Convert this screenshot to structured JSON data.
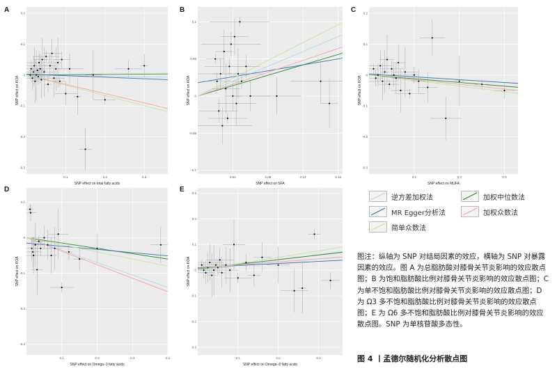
{
  "legend": {
    "items": [
      {
        "label": "逆方差加权法",
        "color": "#b7d8ec"
      },
      {
        "label": "加权中位数法",
        "color": "#2e8b2e"
      },
      {
        "label": "MR Egger分析法",
        "color": "#3a6fb0"
      },
      {
        "label": "加权众数法",
        "color": "#f2a7a7"
      },
      {
        "label": "简单众数法",
        "color": "#c9e3a6"
      }
    ]
  },
  "caption": "图注：纵轴为 SNP 对结局因素的效应，横轴为 SNP 对暴露因素的效应。图 A 为总脂肪酸对膝骨关节炎影响的效应散点图；B 为饱和脂肪酸比例对膝骨关节炎影响的效应散点图；C 为单不饱和脂肪酸比例对膝骨关节炎影响的效应散点图；D 为 Ω3 多不饱和脂肪酸比例对膝骨关节炎影响的效应散点图；E 为 Ω6 多不饱和脂肪酸比例对膝骨关节炎影响的效应散点图。SNP 为单核苷酸多态性。",
  "figure_title": "图 4 丨孟德尔随机化分析散点图",
  "chart_data": [
    {
      "panel": "A",
      "type": "scatter",
      "xlabel": "SNP effect on  total fatty acids",
      "ylabel": "SNP effect on KOA",
      "xlim": [
        0.0,
        0.36
      ],
      "ylim": [
        -0.32,
        0.22
      ],
      "xticks": [
        0.1,
        0.2,
        0.3
      ],
      "yticks": [
        -0.3,
        -0.2,
        -0.1,
        0.0,
        0.1,
        0.2
      ],
      "points": [
        [
          0.01,
          0.0
        ],
        [
          0.012,
          0.02
        ],
        [
          0.015,
          -0.01
        ],
        [
          0.018,
          0.01
        ],
        [
          0.02,
          0.03
        ],
        [
          0.022,
          -0.02
        ],
        [
          0.025,
          0.0
        ],
        [
          0.028,
          0.015
        ],
        [
          0.03,
          -0.005
        ],
        [
          0.032,
          0.04
        ],
        [
          0.035,
          0.02
        ],
        [
          0.038,
          -0.015
        ],
        [
          0.04,
          0.05
        ],
        [
          0.045,
          0.01
        ],
        [
          0.05,
          0.06
        ],
        [
          0.055,
          -0.03
        ],
        [
          0.06,
          0.03
        ],
        [
          0.065,
          0.07
        ],
        [
          0.07,
          -0.01
        ],
        [
          0.075,
          0.02
        ],
        [
          0.08,
          0.04
        ],
        [
          0.085,
          -0.02
        ],
        [
          0.09,
          0.05
        ],
        [
          0.1,
          -0.06
        ],
        [
          0.11,
          0.02
        ],
        [
          0.13,
          -0.07
        ],
        [
          0.15,
          -0.24
        ],
        [
          0.17,
          0.0
        ],
        [
          0.2,
          -0.08
        ],
        [
          0.26,
          0.02
        ],
        [
          0.3,
          0.03
        ]
      ],
      "lines": [
        {
          "method": "逆方差加权法",
          "slope": -0.02,
          "intercept": 0.0
        },
        {
          "method": "加权中位数法",
          "slope": 0.01,
          "intercept": 0.0
        },
        {
          "method": "MR Egger分析法",
          "slope": -0.05,
          "intercept": 0.003
        },
        {
          "method": "加权众数法",
          "slope": -0.3,
          "intercept": 0.0
        },
        {
          "method": "简单众数法",
          "slope": -0.33,
          "intercept": 0.0
        }
      ]
    },
    {
      "panel": "B",
      "type": "scatter",
      "xlabel": "SNP effect on SFA",
      "ylabel": "SNP effect on KOA",
      "xlim": [
        0.0,
        0.165
      ],
      "ylim": [
        -0.105,
        0.12
      ],
      "xticks": [
        0.04,
        0.08,
        0.12,
        0.16
      ],
      "yticks": [
        -0.1,
        -0.05,
        0.0,
        0.05,
        0.1
      ],
      "points": [
        [
          0.02,
          0.05
        ],
        [
          0.022,
          0.02
        ],
        [
          0.024,
          -0.02
        ],
        [
          0.026,
          0.03
        ],
        [
          0.028,
          -0.04
        ],
        [
          0.03,
          0.06
        ],
        [
          0.032,
          0.01
        ],
        [
          0.034,
          -0.03
        ],
        [
          0.036,
          0.04
        ],
        [
          0.038,
          0.07
        ],
        [
          0.04,
          0.0
        ],
        [
          0.042,
          0.08
        ],
        [
          0.044,
          -0.01
        ],
        [
          0.046,
          0.03
        ],
        [
          0.048,
          0.1
        ],
        [
          0.05,
          0.02
        ],
        [
          0.055,
          0.04
        ],
        [
          0.06,
          0.0
        ],
        [
          0.09,
          0.0
        ],
        [
          0.14,
          0.02
        ],
        [
          0.15,
          -0.01
        ]
      ],
      "lines": [
        {
          "method": "逆方差加权法",
          "slope": 0.5,
          "intercept": 0.0
        },
        {
          "method": "加权中位数法",
          "slope": 0.35,
          "intercept": 0.0
        },
        {
          "method": "MR Egger分析法",
          "slope": 0.2,
          "intercept": 0.018
        },
        {
          "method": "加权众数法",
          "slope": 0.4,
          "intercept": 0.0
        },
        {
          "method": "简单众数法",
          "slope": 0.6,
          "intercept": 0.0
        }
      ]
    },
    {
      "panel": "C",
      "type": "scatter",
      "xlabel": "SNP effect on MUFA",
      "ylabel": "SNP effect on KOA",
      "xlim": [
        0.0,
        0.33
      ],
      "ylim": [
        -0.32,
        0.22
      ],
      "xticks": [
        0.1,
        0.2,
        0.3
      ],
      "yticks": [
        -0.3,
        -0.2,
        -0.1,
        0.0,
        0.1,
        0.2
      ],
      "points": [
        [
          0.01,
          0.02
        ],
        [
          0.015,
          -0.01
        ],
        [
          0.02,
          0.0
        ],
        [
          0.025,
          0.03
        ],
        [
          0.03,
          -0.02
        ],
        [
          0.035,
          0.01
        ],
        [
          0.04,
          0.05
        ],
        [
          0.045,
          -0.03
        ],
        [
          0.05,
          0.02
        ],
        [
          0.055,
          0.0
        ],
        [
          0.06,
          -0.01
        ],
        [
          0.065,
          0.04
        ],
        [
          0.07,
          -0.05
        ],
        [
          0.08,
          0.01
        ],
        [
          0.09,
          -0.06
        ],
        [
          0.1,
          0.0
        ],
        [
          0.11,
          -0.02
        ],
        [
          0.13,
          -0.04
        ],
        [
          0.14,
          0.12
        ],
        [
          0.17,
          -0.14
        ],
        [
          0.2,
          -0.02
        ],
        [
          0.25,
          -0.03
        ],
        [
          0.3,
          -0.05
        ]
      ],
      "lines": [
        {
          "method": "逆方差加权法",
          "slope": -0.1,
          "intercept": 0.005
        },
        {
          "method": "加权中位数法",
          "slope": -0.12,
          "intercept": 0.0
        },
        {
          "method": "MR Egger分析法",
          "slope": -0.09,
          "intercept": 0.003
        },
        {
          "method": "加权众数法",
          "slope": -0.15,
          "intercept": 0.0
        },
        {
          "method": "简单众数法",
          "slope": -0.18,
          "intercept": 0.0
        }
      ]
    },
    {
      "panel": "D",
      "type": "scatter",
      "xlabel": "SNP effect on Omega−3 fatty acids",
      "ylabel": "SNP effect on KOA",
      "xlim": [
        0.0,
        0.4
      ],
      "ylim": [
        -0.33,
        0.14
      ],
      "xticks": [
        0.1,
        0.2,
        0.3,
        0.4
      ],
      "yticks": [
        -0.3,
        -0.2,
        -0.1,
        0.0,
        0.1
      ],
      "points": [
        [
          0.01,
          0.08
        ],
        [
          0.012,
          0.07
        ],
        [
          0.015,
          -0.03
        ],
        [
          0.018,
          -0.04
        ],
        [
          0.02,
          -0.05
        ],
        [
          0.025,
          -0.02
        ],
        [
          0.03,
          -0.09
        ],
        [
          0.035,
          -0.01
        ],
        [
          0.04,
          -0.03
        ],
        [
          0.05,
          0.0
        ],
        [
          0.06,
          -0.02
        ],
        [
          0.07,
          -0.05
        ],
        [
          0.08,
          -0.03
        ],
        [
          0.09,
          0.01
        ],
        [
          0.1,
          -0.14
        ],
        [
          0.12,
          -0.04
        ],
        [
          0.15,
          -0.06
        ],
        [
          0.2,
          -0.03
        ],
        [
          0.38,
          -0.02
        ]
      ],
      "lines": [
        {
          "method": "逆方差加权法",
          "slope": -0.35,
          "intercept": 0.0
        },
        {
          "method": "加权中位数法",
          "slope": -0.15,
          "intercept": 0.0
        },
        {
          "method": "MR Egger分析法",
          "slope": -0.09,
          "intercept": -0.015
        },
        {
          "method": "加权众数法",
          "slope": -0.38,
          "intercept": 0.0
        },
        {
          "method": "简单众数法",
          "slope": -0.2,
          "intercept": 0.0
        }
      ]
    },
    {
      "panel": "E",
      "type": "scatter",
      "xlabel": "SNP effect on Omega−6 fatty acids",
      "ylabel": "SNP effect on KOA",
      "xlim": [
        0.0,
        0.36
      ],
      "ylim": [
        -0.33,
        0.32
      ],
      "xticks": [
        0.1,
        0.2,
        0.3
      ],
      "yticks": [
        -0.3,
        -0.2,
        -0.1,
        0.0,
        0.1,
        0.2,
        0.3
      ],
      "points": [
        [
          0.01,
          0.02
        ],
        [
          0.015,
          0.0
        ],
        [
          0.02,
          -0.01
        ],
        [
          0.025,
          0.01
        ],
        [
          0.03,
          0.03
        ],
        [
          0.035,
          -0.02
        ],
        [
          0.04,
          0.0
        ],
        [
          0.045,
          0.02
        ],
        [
          0.05,
          0.01
        ],
        [
          0.055,
          0.04
        ],
        [
          0.06,
          -0.01
        ],
        [
          0.07,
          0.02
        ],
        [
          0.08,
          0.0
        ],
        [
          0.09,
          0.1
        ],
        [
          0.1,
          -0.03
        ],
        [
          0.12,
          0.03
        ],
        [
          0.14,
          -0.02
        ],
        [
          0.16,
          0.05
        ],
        [
          0.2,
          0.02
        ],
        [
          0.24,
          -0.08
        ],
        [
          0.26,
          -0.07
        ],
        [
          0.29,
          0.14
        ],
        [
          0.33,
          -0.04
        ]
      ],
      "lines": [
        {
          "method": "逆方差加权法",
          "slope": 0.2,
          "intercept": 0.0
        },
        {
          "method": "加权中位数法",
          "slope": 0.18,
          "intercept": 0.005
        },
        {
          "method": "MR Egger分析法",
          "slope": 0.08,
          "intercept": 0.01
        },
        {
          "method": "加权众数法",
          "slope": 0.12,
          "intercept": 0.008
        },
        {
          "method": "简单众数法",
          "slope": 0.25,
          "intercept": 0.0
        }
      ]
    }
  ]
}
